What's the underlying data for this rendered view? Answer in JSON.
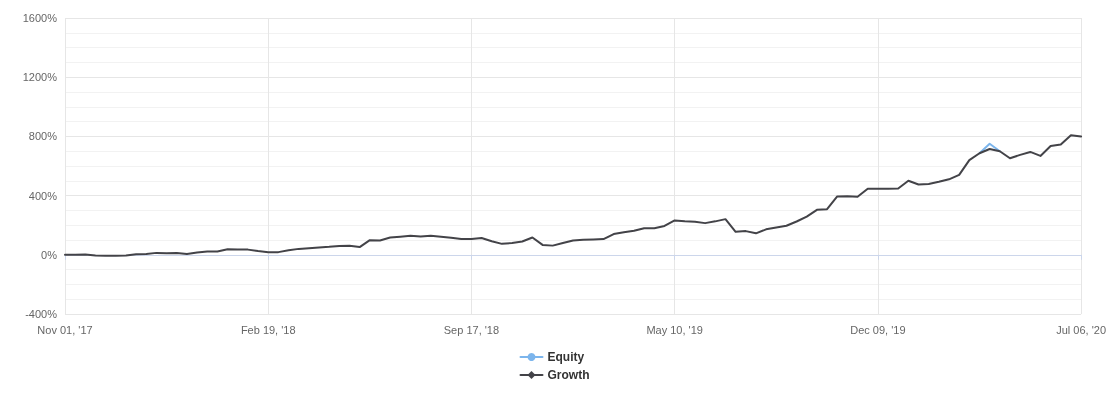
{
  "chart_data": {
    "type": "line",
    "categories": [
      "Nov 01, '17",
      null,
      null,
      null,
      null,
      null,
      null,
      null,
      null,
      null,
      null,
      null,
      null,
      null,
      null,
      null,
      null,
      null,
      null,
      null,
      "Feb 19, '18",
      null,
      null,
      null,
      null,
      null,
      null,
      null,
      null,
      null,
      null,
      null,
      null,
      null,
      null,
      null,
      null,
      null,
      null,
      null,
      "Sep 17, '18",
      null,
      null,
      null,
      null,
      null,
      null,
      null,
      null,
      null,
      null,
      null,
      null,
      null,
      null,
      null,
      null,
      null,
      null,
      null,
      "May 10, '19",
      null,
      null,
      null,
      null,
      null,
      null,
      null,
      null,
      null,
      null,
      null,
      null,
      null,
      null,
      null,
      null,
      null,
      null,
      null,
      "Dec 09, '19",
      null,
      null,
      null,
      null,
      null,
      null,
      null,
      null,
      null,
      null,
      null,
      null,
      null,
      null,
      null,
      null,
      null,
      null,
      null,
      "Jul 06, '20"
    ],
    "series": [
      {
        "name": "Equity",
        "color": "#7cb5ec",
        "values": [
          null,
          null,
          null,
          null,
          null,
          null,
          null,
          null,
          null,
          null,
          null,
          null,
          null,
          null,
          null,
          null,
          null,
          null,
          null,
          null,
          null,
          null,
          null,
          null,
          null,
          null,
          null,
          null,
          null,
          null,
          null,
          null,
          null,
          null,
          null,
          null,
          null,
          null,
          null,
          null,
          null,
          null,
          null,
          null,
          null,
          null,
          null,
          null,
          null,
          null,
          null,
          null,
          null,
          null,
          null,
          null,
          null,
          null,
          null,
          null,
          null,
          null,
          null,
          null,
          null,
          null,
          null,
          null,
          null,
          null,
          null,
          null,
          null,
          null,
          null,
          null,
          null,
          null,
          null,
          null,
          null,
          null,
          null,
          null,
          null,
          null,
          null,
          null,
          null,
          null,
          686,
          750,
          700,
          null,
          null,
          null,
          null,
          null,
          null,
          null,
          null
        ]
      },
      {
        "name": "Growth",
        "color": "#434348",
        "values": [
          0,
          0,
          2,
          -5,
          -7,
          -7,
          -5,
          3,
          5,
          13,
          10,
          12,
          5,
          15,
          22,
          22,
          37,
          35,
          35,
          25,
          18,
          18,
          30,
          40,
          45,
          50,
          54,
          60,
          61,
          52,
          99,
          97,
          117,
          122,
          128,
          124,
          128,
          122,
          115,
          106,
          106,
          113,
          92,
          74,
          80,
          90,
          117,
          67,
          62,
          80,
          97,
          102,
          104,
          106,
          140,
          152,
          162,
          180,
          180,
          195,
          232,
          226,
          223,
          214,
          226,
          241,
          155,
          160,
          145,
          172,
          185,
          196,
          225,
          258,
          304,
          308,
          394,
          396,
          392,
          446,
          446,
          447,
          448,
          500,
          475,
          479,
          493,
          510,
          540,
          640,
          686,
          715,
          700,
          652,
          675,
          695,
          668,
          735,
          745,
          808,
          800
        ]
      }
    ],
    "ylim": [
      -400,
      1600
    ],
    "yticks": [
      {
        "value": -400,
        "label": "-400%"
      },
      {
        "value": 0,
        "label": "0%"
      },
      {
        "value": 400,
        "label": "400%"
      },
      {
        "value": 800,
        "label": "800%"
      },
      {
        "value": 1200,
        "label": "1200%"
      },
      {
        "value": 1600,
        "label": "1600%"
      }
    ],
    "grid": true,
    "legend": "bottom",
    "marker": "none",
    "line_style": "solid"
  }
}
